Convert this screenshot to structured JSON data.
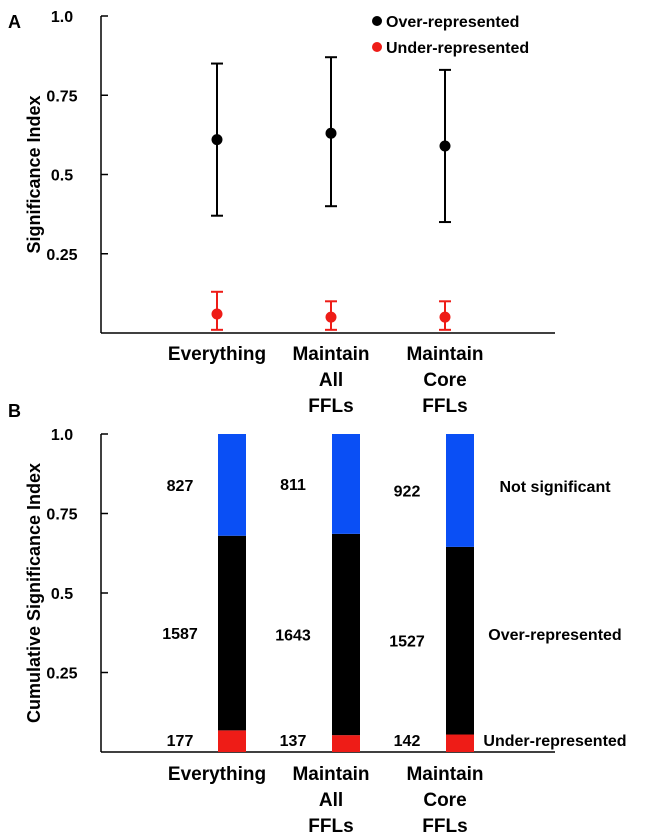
{
  "chart_data": [
    {
      "panel_label": "A",
      "type": "scatter",
      "ylabel": "Significance Index",
      "ylim": [
        0,
        1.0
      ],
      "yticks": [
        {
          "value": 0.25,
          "label": "0.25"
        },
        {
          "value": 0.5,
          "label": "0.5"
        },
        {
          "value": 0.75,
          "label": "0.75"
        },
        {
          "value": 1.0,
          "label": "1.0"
        }
      ],
      "categories": [
        {
          "lines": [
            "Everything"
          ]
        },
        {
          "lines": [
            "Maintain",
            "All",
            "FFLs"
          ]
        },
        {
          "lines": [
            "Maintain",
            "Core",
            "FFLs"
          ]
        }
      ],
      "legend_position": "top-right",
      "series": [
        {
          "name": "Over-represented",
          "color": "#000000",
          "values": [
            0.61,
            0.63,
            0.59
          ],
          "err_low": [
            0.37,
            0.4,
            0.35
          ],
          "err_high": [
            0.85,
            0.87,
            0.83
          ]
        },
        {
          "name": "Under-represented",
          "color": "#ee1c17",
          "values": [
            0.06,
            0.05,
            0.05
          ],
          "err_low": [
            0.01,
            0.01,
            0.01
          ],
          "err_high": [
            0.13,
            0.1,
            0.1
          ]
        }
      ]
    },
    {
      "panel_label": "B",
      "type": "bar",
      "stacked": true,
      "ylabel": "Cumulative Significance Index",
      "ylim": [
        0,
        1.0
      ],
      "yticks": [
        {
          "value": 0.25,
          "label": "0.25"
        },
        {
          "value": 0.5,
          "label": "0.5"
        },
        {
          "value": 0.75,
          "label": "0.75"
        },
        {
          "value": 1.0,
          "label": "1.0"
        }
      ],
      "categories": [
        {
          "lines": [
            "Everything"
          ]
        },
        {
          "lines": [
            "Maintain",
            "All",
            "FFLs"
          ]
        },
        {
          "lines": [
            "Maintain",
            "Core",
            "FFLs"
          ]
        }
      ],
      "series": [
        {
          "name": "Under-represented",
          "color": "#ee1c17",
          "counts": [
            177,
            137,
            142
          ],
          "values": [
            0.068,
            0.053,
            0.055
          ]
        },
        {
          "name": "Over-represented",
          "color": "#000000",
          "counts": [
            1587,
            1643,
            1527
          ],
          "values": [
            0.612,
            0.633,
            0.59
          ]
        },
        {
          "name": "Not significant",
          "color": "#0a4ff5",
          "counts": [
            827,
            811,
            922
          ],
          "values": [
            0.32,
            0.314,
            0.355
          ]
        }
      ]
    }
  ]
}
